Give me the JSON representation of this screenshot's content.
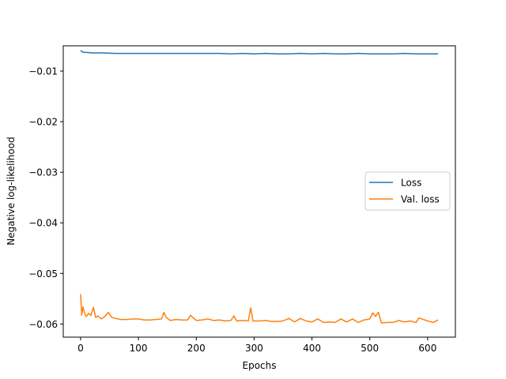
{
  "chart_data": {
    "type": "line",
    "title": "",
    "xlabel": "Epochs",
    "ylabel": "Negative log-likelihood",
    "xlim": [
      -30,
      648
    ],
    "ylim": [
      -0.0626,
      -0.005
    ],
    "xticks": [
      0,
      100,
      200,
      300,
      400,
      500,
      600
    ],
    "xtick_labels": [
      "0",
      "100",
      "200",
      "300",
      "400",
      "500",
      "600"
    ],
    "yticks": [
      -0.01,
      -0.02,
      -0.03,
      -0.04,
      -0.05,
      -0.06
    ],
    "ytick_labels": [
      "−0.01",
      "−0.02",
      "−0.03",
      "−0.04",
      "−0.05",
      "−0.06"
    ],
    "grid": false,
    "legend_position": "center-right",
    "series": [
      {
        "name": "Loss",
        "color": "#1f77b4",
        "x": [
          0,
          3,
          6,
          10,
          20,
          30,
          40,
          60,
          80,
          100,
          120,
          140,
          160,
          180,
          200,
          220,
          240,
          260,
          280,
          300,
          320,
          340,
          360,
          380,
          400,
          420,
          440,
          460,
          480,
          500,
          520,
          540,
          560,
          580,
          600,
          618
        ],
        "y": [
          -0.0059,
          -0.0062,
          -0.0063,
          -0.0063,
          -0.0064,
          -0.0064,
          -0.0064,
          -0.0065,
          -0.0065,
          -0.0065,
          -0.0065,
          -0.0065,
          -0.0065,
          -0.0065,
          -0.0065,
          -0.0065,
          -0.0065,
          -0.0066,
          -0.0065,
          -0.0066,
          -0.0065,
          -0.0066,
          -0.0066,
          -0.0065,
          -0.0066,
          -0.0065,
          -0.0066,
          -0.0066,
          -0.0065,
          -0.0066,
          -0.0066,
          -0.0066,
          -0.0065,
          -0.0066,
          -0.0066,
          -0.0066
        ]
      },
      {
        "name": "Val. loss",
        "color": "#ff7f0e",
        "x": [
          0,
          2,
          4,
          6,
          8,
          10,
          14,
          18,
          22,
          26,
          30,
          36,
          42,
          48,
          54,
          60,
          70,
          80,
          90,
          100,
          110,
          120,
          130,
          140,
          144,
          148,
          155,
          165,
          175,
          185,
          190,
          200,
          210,
          220,
          230,
          240,
          250,
          260,
          265,
          270,
          280,
          290,
          294,
          298,
          310,
          320,
          330,
          340,
          350,
          360,
          370,
          380,
          390,
          400,
          410,
          420,
          430,
          440,
          450,
          460,
          470,
          480,
          490,
          500,
          505,
          510,
          515,
          520,
          530,
          540,
          550,
          560,
          570,
          580,
          585,
          590,
          600,
          610,
          618
        ],
        "y": [
          -0.0541,
          -0.0583,
          -0.0566,
          -0.0575,
          -0.0582,
          -0.0585,
          -0.0579,
          -0.0583,
          -0.0567,
          -0.0587,
          -0.0584,
          -0.059,
          -0.0585,
          -0.0577,
          -0.0587,
          -0.0589,
          -0.0591,
          -0.0591,
          -0.059,
          -0.059,
          -0.0592,
          -0.0592,
          -0.0591,
          -0.059,
          -0.0577,
          -0.0587,
          -0.0593,
          -0.0591,
          -0.0592,
          -0.0592,
          -0.0583,
          -0.0593,
          -0.0592,
          -0.059,
          -0.0593,
          -0.0592,
          -0.0594,
          -0.0593,
          -0.0584,
          -0.0594,
          -0.0593,
          -0.0594,
          -0.0568,
          -0.0594,
          -0.0594,
          -0.0593,
          -0.0595,
          -0.0595,
          -0.0594,
          -0.0589,
          -0.0596,
          -0.0589,
          -0.0594,
          -0.0596,
          -0.059,
          -0.0597,
          -0.0596,
          -0.0597,
          -0.059,
          -0.0596,
          -0.059,
          -0.0597,
          -0.0592,
          -0.059,
          -0.0578,
          -0.0585,
          -0.0577,
          -0.0598,
          -0.0597,
          -0.0597,
          -0.0593,
          -0.0596,
          -0.0594,
          -0.0597,
          -0.0588,
          -0.059,
          -0.0594,
          -0.0597,
          -0.0592
        ]
      }
    ]
  }
}
